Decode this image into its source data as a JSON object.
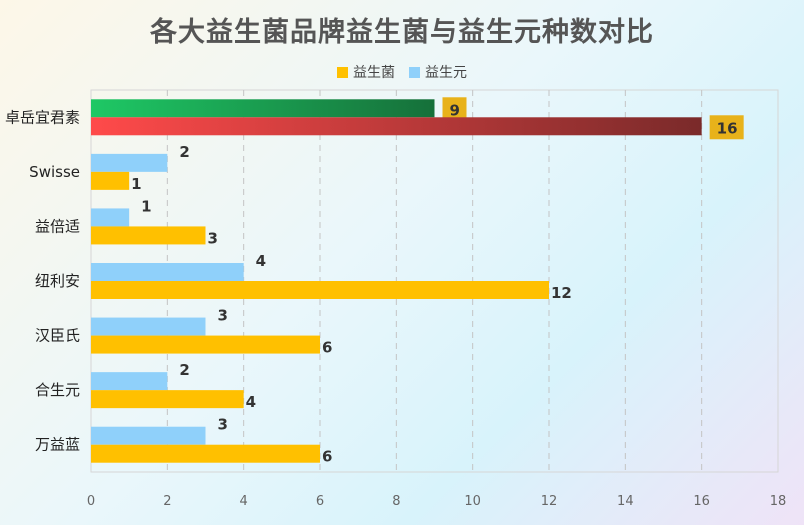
{
  "chart_data": {
    "type": "bar",
    "orientation": "horizontal",
    "title": "各大益生菌品牌益生菌与益生元种数对比",
    "categories": [
      "卓岳宜君素",
      "Swisse",
      "益倍适",
      "纽利安",
      "汉臣氏",
      "合生元",
      "万益蓝"
    ],
    "series": [
      {
        "name": "益生菌",
        "color": "#FFC000",
        "values": [
          16,
          1,
          3,
          12,
          6,
          4,
          6
        ]
      },
      {
        "name": "益生元",
        "color": "#8FD0FA",
        "values": [
          9,
          2,
          1,
          4,
          3,
          2,
          3
        ]
      }
    ],
    "highlight": {
      "category": "卓岳宜君素",
      "series_colors": {
        "益生菌": [
          "#FF4A4A",
          "#7A2A2A"
        ],
        "益生元": [
          "#1EC865",
          "#16703A"
        ]
      },
      "label_badge_color": "#E8B21A"
    },
    "xlim": [
      0,
      18
    ],
    "xticks": [
      0,
      2,
      4,
      6,
      8,
      10,
      12,
      14,
      16,
      18
    ],
    "grid": true,
    "legend_position": "top"
  }
}
